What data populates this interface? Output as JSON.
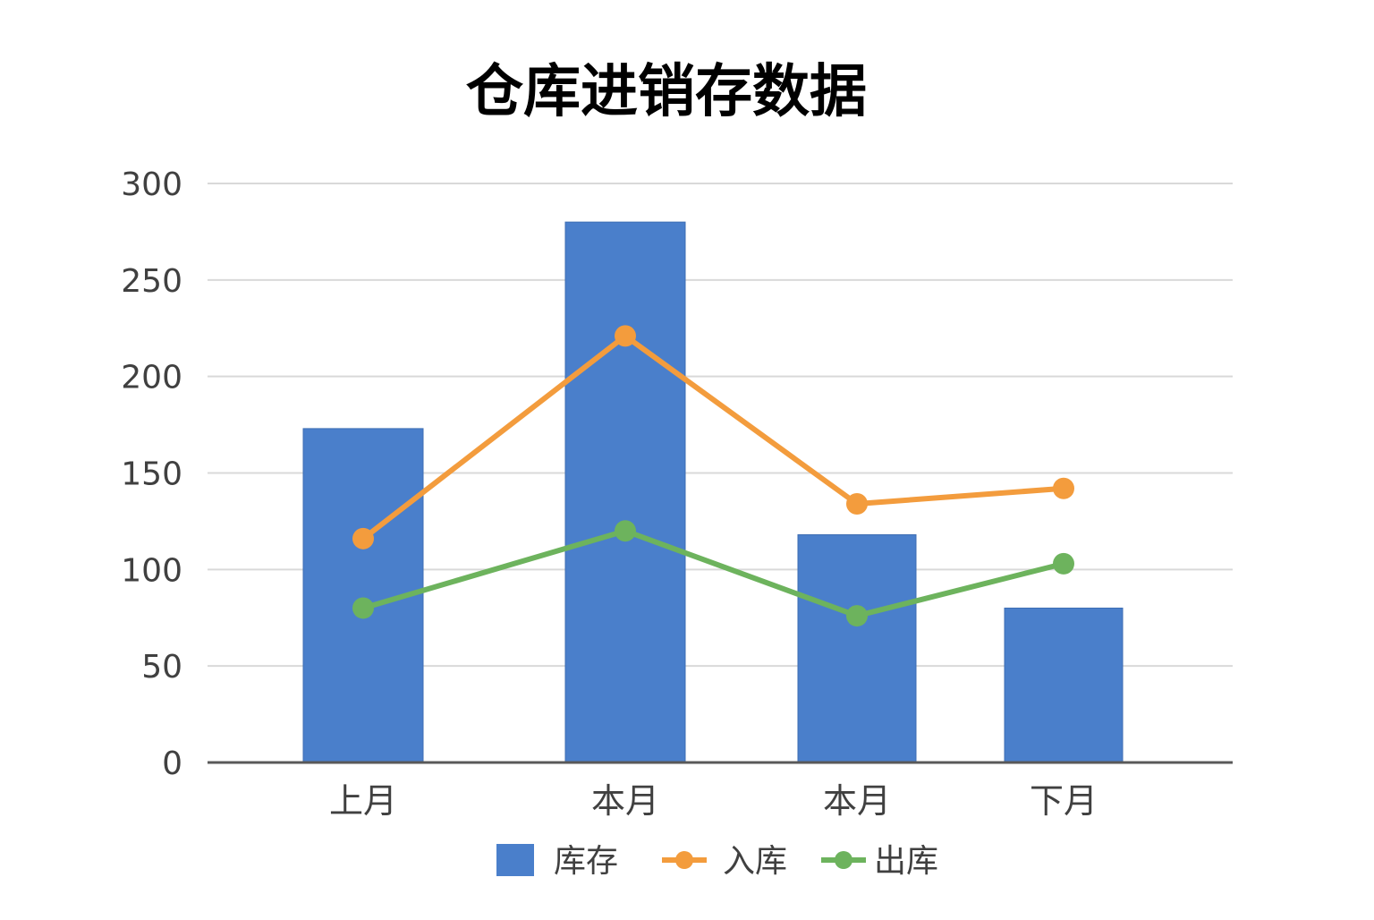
{
  "chart_data": {
    "type": "bar",
    "title": "仓库进销存数据",
    "xlabel": "",
    "ylabel": "",
    "categories": [
      "上月",
      "本月",
      "本月",
      "下月"
    ],
    "ylim": [
      0,
      300
    ],
    "yticks": [
      0,
      50,
      100,
      150,
      200,
      250,
      300
    ],
    "grid": true,
    "legend_position": "bottom",
    "series": [
      {
        "name": "库存",
        "type": "bar",
        "color": "#4a7fcb",
        "values": [
          173,
          280,
          118,
          80
        ]
      },
      {
        "name": "入库",
        "type": "line",
        "color": "#f39c3d",
        "values": [
          116,
          221,
          134,
          142
        ]
      },
      {
        "name": "出库",
        "type": "line",
        "color": "#6db35d",
        "values": [
          80,
          120,
          76,
          103
        ]
      }
    ]
  }
}
